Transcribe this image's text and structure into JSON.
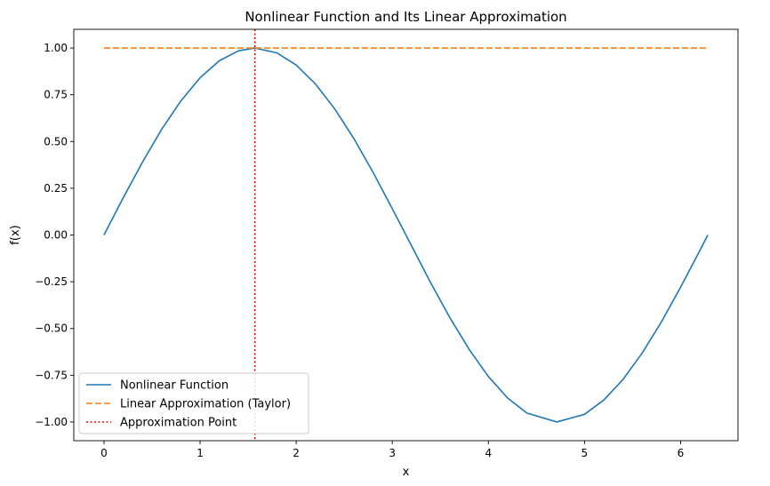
{
  "chart_data": {
    "type": "line",
    "title": "Nonlinear Function and Its Linear Approximation",
    "xlabel": "x",
    "ylabel": "f(x)",
    "xlim": [
      -0.314,
      6.597
    ],
    "ylim": [
      -1.1,
      1.1
    ],
    "xticks": [
      0,
      1,
      2,
      3,
      4,
      5,
      6
    ],
    "xtick_labels": [
      "0",
      "1",
      "2",
      "3",
      "4",
      "5",
      "6"
    ],
    "yticks": [
      -1.0,
      -0.75,
      -0.5,
      -0.25,
      0.0,
      0.25,
      0.5,
      0.75,
      1.0
    ],
    "ytick_labels": [
      "−1.00",
      "−0.75",
      "−0.50",
      "−0.25",
      "0.00",
      "0.25",
      "0.50",
      "0.75",
      "1.00"
    ],
    "grid": false,
    "legend_position": "lower-left",
    "series": [
      {
        "name": "Nonlinear Function",
        "style": "solid",
        "color": "#1f77b4",
        "x": [
          0,
          0.2,
          0.4,
          0.6,
          0.8,
          1.0,
          1.2,
          1.4,
          1.571,
          1.8,
          2.0,
          2.2,
          2.4,
          2.6,
          2.8,
          3.0,
          3.142,
          3.4,
          3.6,
          3.8,
          4.0,
          4.2,
          4.4,
          4.712,
          5.0,
          5.2,
          5.4,
          5.6,
          5.8,
          6.0,
          6.2,
          6.283
        ],
        "y": [
          0.0,
          0.199,
          0.389,
          0.565,
          0.717,
          0.841,
          0.932,
          0.985,
          1.0,
          0.974,
          0.909,
          0.808,
          0.675,
          0.516,
          0.335,
          0.141,
          0.0,
          -0.256,
          -0.443,
          -0.612,
          -0.757,
          -0.872,
          -0.952,
          -1.0,
          -0.959,
          -0.883,
          -0.773,
          -0.631,
          -0.465,
          -0.279,
          -0.083,
          0.0
        ]
      },
      {
        "name": "Linear Approximation (Taylor)",
        "style": "dashed",
        "color": "#ff7f0e",
        "x": [
          0,
          6.283
        ],
        "y": [
          1.0,
          1.0
        ]
      }
    ],
    "vlines": [
      {
        "name": "Approximation Point",
        "style": "dotted",
        "color": "#ff0000",
        "x": 1.571
      }
    ]
  }
}
